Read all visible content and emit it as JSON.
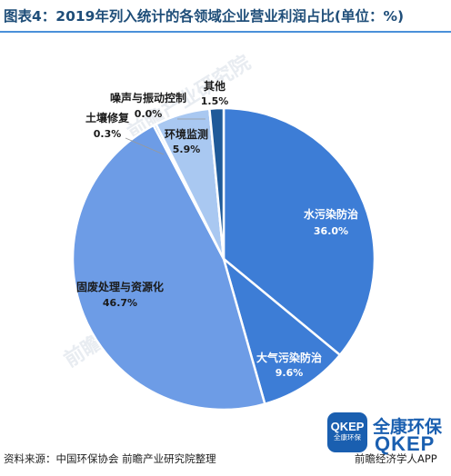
{
  "title": "图表4：2019年列入统计的各领域企业营业利润占比(单位：%)",
  "source": "资料来源：中国环保协会 前瞻产业研究院整理",
  "source_right": "前瞻经济学人APP",
  "watermark_text": "前瞻产业研究院",
  "brand": {
    "logo_line1": "QKEP",
    "logo_line2": "全康环保",
    "name_cn": "全康环保",
    "name_en": "QKEP"
  },
  "colors": {
    "dark_blue": "#1f5a99",
    "mid_blue": "#3d7dd6",
    "light_blue": "#6d9ce6",
    "pale_blue": "#a9c8f1",
    "title": "#1f4e79"
  },
  "chart_data": {
    "type": "pie",
    "title": "2019年列入统计的各领域企业营业利润占比(单位：%)",
    "slices": [
      {
        "label": "水污染防治",
        "value": 36.0,
        "display": "36.0%",
        "color": "#3d7dd6"
      },
      {
        "label": "大气污染防治",
        "value": 9.6,
        "display": "9.6%",
        "color": "#3d7dd6"
      },
      {
        "label": "固废处理与资源化",
        "value": 46.7,
        "display": "46.7%",
        "color": "#6d9ce6"
      },
      {
        "label": "土壤修复",
        "value": 0.3,
        "display": "0.3%",
        "color": "#a9c8f1"
      },
      {
        "label": "环境监测",
        "value": 5.9,
        "display": "5.9%",
        "color": "#a9c8f1"
      },
      {
        "label": "噪声与振动控制",
        "value": 0.0,
        "display": "0.0%",
        "color": "#a9c8f1"
      },
      {
        "label": "其他",
        "value": 1.5,
        "display": "1.5%",
        "color": "#1f5a99"
      }
    ]
  }
}
